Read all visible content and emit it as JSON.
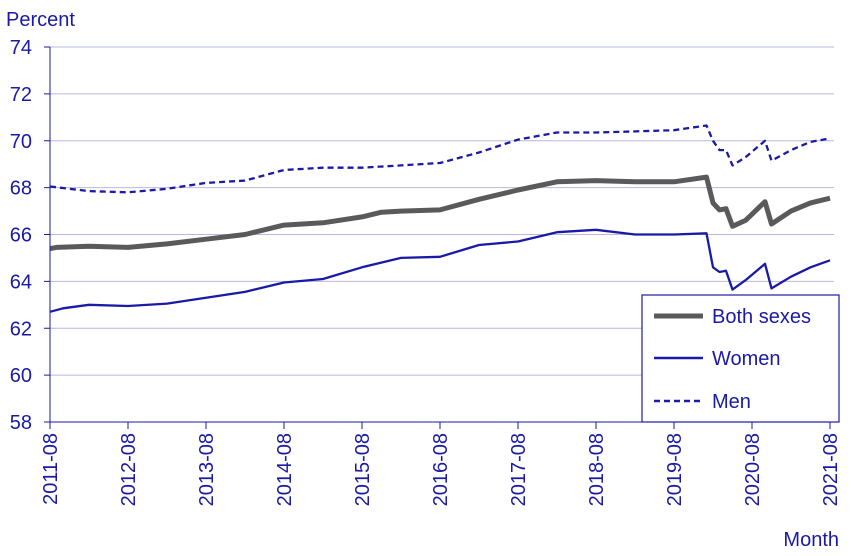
{
  "chart_data": {
    "type": "line",
    "ylabel": "Percent",
    "xlabel": "Month",
    "ylim": [
      58,
      74
    ],
    "yticks": [
      58,
      60,
      62,
      64,
      66,
      68,
      70,
      72,
      74
    ],
    "x_start": "2011-08",
    "x_end": "2021-08",
    "xticks": [
      "2011-08",
      "2012-08",
      "2013-08",
      "2014-08",
      "2015-08",
      "2016-08",
      "2017-08",
      "2018-08",
      "2019-08",
      "2020-08",
      "2021-08"
    ],
    "grid": "horizontal",
    "legend_position": "bottom-right",
    "series": [
      {
        "name": "Both sexes",
        "color": "#5a5a5a",
        "style": "solid-thick",
        "points": [
          [
            "2011-08",
            65.4
          ],
          [
            "2011-09",
            65.45
          ],
          [
            "2012-02",
            65.5
          ],
          [
            "2012-08",
            65.45
          ],
          [
            "2013-02",
            65.6
          ],
          [
            "2013-08",
            65.8
          ],
          [
            "2014-02",
            66.0
          ],
          [
            "2014-08",
            66.4
          ],
          [
            "2015-02",
            66.5
          ],
          [
            "2015-08",
            66.75
          ],
          [
            "2015-11",
            66.95
          ],
          [
            "2016-02",
            67.0
          ],
          [
            "2016-08",
            67.05
          ],
          [
            "2017-02",
            67.5
          ],
          [
            "2017-08",
            67.9
          ],
          [
            "2018-02",
            68.25
          ],
          [
            "2018-08",
            68.3
          ],
          [
            "2019-02",
            68.25
          ],
          [
            "2019-08",
            68.25
          ],
          [
            "2020-01",
            68.45
          ],
          [
            "2020-02",
            67.35
          ],
          [
            "2020-03",
            67.05
          ],
          [
            "2020-04",
            67.1
          ],
          [
            "2020-05",
            66.35
          ],
          [
            "2020-07",
            66.6
          ],
          [
            "2020-10",
            67.4
          ],
          [
            "2020-11",
            66.45
          ],
          [
            "2021-02",
            67.0
          ],
          [
            "2021-05",
            67.35
          ],
          [
            "2021-08",
            67.55
          ]
        ]
      },
      {
        "name": "Women",
        "color": "#1a1aa6",
        "style": "solid",
        "points": [
          [
            "2011-08",
            62.7
          ],
          [
            "2011-10",
            62.85
          ],
          [
            "2012-02",
            63.0
          ],
          [
            "2012-08",
            62.95
          ],
          [
            "2013-02",
            63.05
          ],
          [
            "2013-08",
            63.3
          ],
          [
            "2014-02",
            63.55
          ],
          [
            "2014-08",
            63.95
          ],
          [
            "2015-02",
            64.1
          ],
          [
            "2015-08",
            64.6
          ],
          [
            "2016-02",
            65.0
          ],
          [
            "2016-08",
            65.05
          ],
          [
            "2017-02",
            65.55
          ],
          [
            "2017-08",
            65.7
          ],
          [
            "2018-02",
            66.1
          ],
          [
            "2018-08",
            66.2
          ],
          [
            "2019-02",
            66.0
          ],
          [
            "2019-08",
            66.0
          ],
          [
            "2020-01",
            66.05
          ],
          [
            "2020-02",
            64.6
          ],
          [
            "2020-03",
            64.4
          ],
          [
            "2020-04",
            64.45
          ],
          [
            "2020-05",
            63.65
          ],
          [
            "2020-07",
            64.05
          ],
          [
            "2020-10",
            64.75
          ],
          [
            "2020-11",
            63.7
          ],
          [
            "2021-02",
            64.2
          ],
          [
            "2021-05",
            64.6
          ],
          [
            "2021-08",
            64.9
          ]
        ]
      },
      {
        "name": "Men",
        "color": "#1a1aa6",
        "style": "dashed",
        "points": [
          [
            "2011-08",
            68.05
          ],
          [
            "2012-02",
            67.85
          ],
          [
            "2012-08",
            67.8
          ],
          [
            "2013-02",
            67.95
          ],
          [
            "2013-08",
            68.2
          ],
          [
            "2014-02",
            68.3
          ],
          [
            "2014-08",
            68.75
          ],
          [
            "2015-02",
            68.85
          ],
          [
            "2015-08",
            68.85
          ],
          [
            "2016-02",
            68.95
          ],
          [
            "2016-08",
            69.05
          ],
          [
            "2017-02",
            69.5
          ],
          [
            "2017-08",
            70.05
          ],
          [
            "2018-02",
            70.35
          ],
          [
            "2018-08",
            70.35
          ],
          [
            "2019-02",
            70.4
          ],
          [
            "2019-08",
            70.45
          ],
          [
            "2020-01",
            70.65
          ],
          [
            "2020-02",
            70.0
          ],
          [
            "2020-03",
            69.6
          ],
          [
            "2020-04",
            69.6
          ],
          [
            "2020-05",
            68.95
          ],
          [
            "2020-07",
            69.3
          ],
          [
            "2020-10",
            70.0
          ],
          [
            "2020-11",
            69.15
          ],
          [
            "2021-02",
            69.6
          ],
          [
            "2021-05",
            69.95
          ],
          [
            "2021-08",
            70.1
          ]
        ]
      }
    ]
  }
}
